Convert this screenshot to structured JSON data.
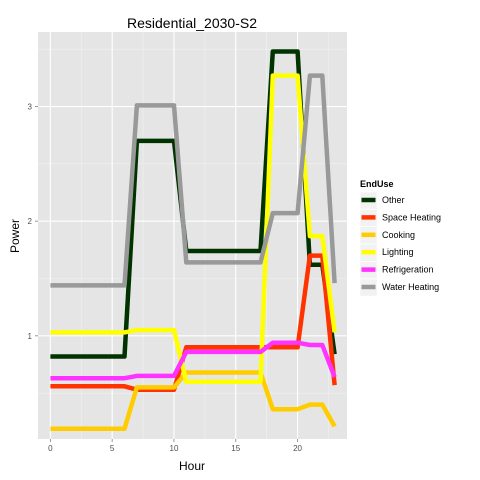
{
  "chart_data": {
    "type": "line",
    "title": "Residential_2030-S2",
    "xlabel": "Hour",
    "ylabel": "Power",
    "xlim": [
      -1,
      24
    ],
    "ylim": [
      0.1,
      3.65
    ],
    "x_ticks": [
      0,
      5,
      10,
      15,
      20
    ],
    "x_tick_labels": [
      "0",
      "5",
      "10",
      "15",
      "20"
    ],
    "y_ticks": [
      1,
      2,
      3
    ],
    "y_tick_labels": [
      "1",
      "2",
      "3"
    ],
    "grid": true,
    "legend_title": "EndUse",
    "legend_position": "right",
    "x": [
      0,
      1,
      2,
      3,
      4,
      5,
      6,
      7,
      8,
      9,
      10,
      11,
      12,
      13,
      14,
      15,
      16,
      17,
      18,
      19,
      20,
      21,
      22,
      23
    ],
    "series": [
      {
        "name": "Other",
        "color": "#003300",
        "values": [
          0.82,
          0.82,
          0.82,
          0.82,
          0.82,
          0.82,
          0.82,
          2.7,
          2.7,
          2.7,
          2.7,
          1.74,
          1.74,
          1.74,
          1.74,
          1.74,
          1.74,
          1.74,
          3.48,
          3.48,
          3.48,
          1.62,
          1.62,
          0.84
        ]
      },
      {
        "name": "Space Heating",
        "color": "#ff3300",
        "values": [
          0.56,
          0.56,
          0.56,
          0.56,
          0.56,
          0.56,
          0.56,
          0.53,
          0.53,
          0.53,
          0.53,
          0.9,
          0.9,
          0.9,
          0.9,
          0.9,
          0.9,
          0.9,
          0.9,
          0.9,
          0.9,
          1.7,
          1.7,
          0.57
        ]
      },
      {
        "name": "Cooking",
        "color": "#ffcc00",
        "values": [
          0.19,
          0.19,
          0.19,
          0.19,
          0.19,
          0.19,
          0.19,
          0.55,
          0.55,
          0.55,
          0.55,
          0.68,
          0.68,
          0.68,
          0.68,
          0.68,
          0.68,
          0.68,
          0.36,
          0.36,
          0.36,
          0.4,
          0.4,
          0.21
        ]
      },
      {
        "name": "Lighting",
        "color": "#ffff00",
        "values": [
          1.03,
          1.03,
          1.03,
          1.03,
          1.03,
          1.03,
          1.03,
          1.05,
          1.05,
          1.05,
          1.05,
          0.6,
          0.6,
          0.6,
          0.6,
          0.6,
          0.6,
          0.6,
          3.27,
          3.27,
          3.27,
          1.87,
          1.87,
          1.03
        ]
      },
      {
        "name": "Refrigeration",
        "color": "#ff33ff",
        "values": [
          0.63,
          0.63,
          0.63,
          0.63,
          0.63,
          0.63,
          0.63,
          0.65,
          0.65,
          0.65,
          0.65,
          0.86,
          0.86,
          0.86,
          0.86,
          0.86,
          0.86,
          0.86,
          0.94,
          0.94,
          0.94,
          0.92,
          0.92,
          0.64
        ]
      },
      {
        "name": "Water Heating",
        "color": "#999999",
        "values": [
          1.44,
          1.44,
          1.44,
          1.44,
          1.44,
          1.44,
          1.44,
          3.01,
          3.01,
          3.01,
          3.01,
          1.64,
          1.64,
          1.64,
          1.64,
          1.64,
          1.64,
          1.64,
          2.07,
          2.07,
          2.07,
          3.27,
          3.27,
          1.46
        ]
      }
    ]
  }
}
